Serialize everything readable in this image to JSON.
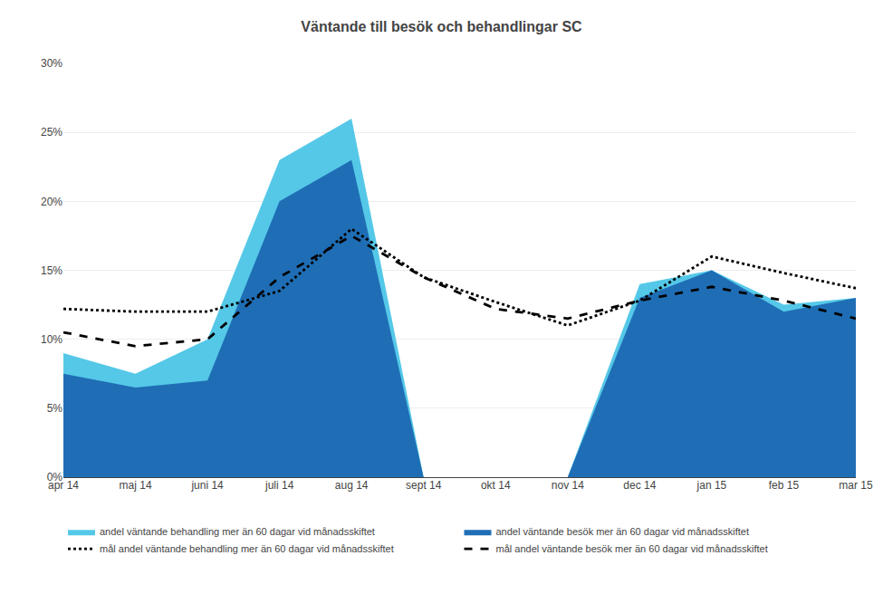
{
  "chart_data": {
    "type": "area",
    "title": "Väntande till besök och behandlingar SC",
    "categories": [
      "apr 14",
      "maj 14",
      "juni 14",
      "juli 14",
      "aug 14",
      "sept 14",
      "okt 14",
      "nov 14",
      "dec 14",
      "jan 15",
      "feb 15",
      "mar 15"
    ],
    "series": [
      {
        "name": "andel väntande behandling mer än 60 dagar vid månadsskiftet",
        "type": "area",
        "color": "#55C8E8",
        "values": [
          0.09,
          0.075,
          0.1,
          0.23,
          0.26,
          0.0,
          0.0,
          0.0,
          0.14,
          0.15,
          0.125,
          0.13
        ]
      },
      {
        "name": "andel väntande besök mer än 60 dagar vid månadsskiftet",
        "type": "area",
        "color": "#1F6EB5",
        "values": [
          0.075,
          0.065,
          0.07,
          0.2,
          0.23,
          0.0,
          0.0,
          0.0,
          0.13,
          0.15,
          0.12,
          0.13
        ]
      },
      {
        "name": "mål andel väntande behandling mer än 60 dagar vid månadsskiftet",
        "type": "line",
        "color": "#000000",
        "line_style": "dotted",
        "values": [
          0.122,
          0.12,
          0.12,
          0.135,
          0.18,
          0.145,
          0.127,
          0.11,
          0.128,
          0.16,
          0.148,
          0.137
        ]
      },
      {
        "name": "mål andel väntande besök mer än 60 dagar vid månadsskiftet",
        "type": "line",
        "color": "#000000",
        "line_style": "dashed",
        "values": [
          0.105,
          0.095,
          0.1,
          0.145,
          0.175,
          0.145,
          0.122,
          0.115,
          0.128,
          0.138,
          0.128,
          0.115
        ]
      }
    ],
    "ylim": [
      0.0,
      0.3
    ],
    "yticks": [
      {
        "value": 0.0,
        "label": "0%"
      },
      {
        "value": 0.05,
        "label": "5%"
      },
      {
        "value": 0.1,
        "label": "10%"
      },
      {
        "value": 0.15,
        "label": "15%"
      },
      {
        "value": 0.2,
        "label": "20%"
      },
      {
        "value": 0.25,
        "label": "25%"
      },
      {
        "value": 0.3,
        "label": "30%"
      }
    ],
    "grid": true,
    "legend": "bottom"
  }
}
